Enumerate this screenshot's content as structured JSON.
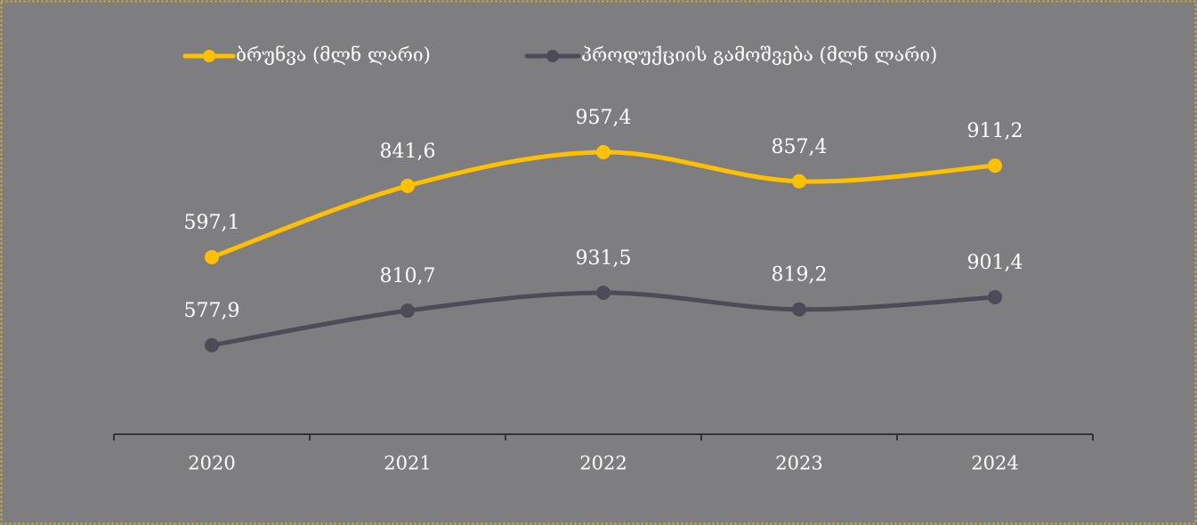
{
  "chart_data": {
    "type": "line",
    "categories": [
      "2020",
      "2021",
      "2022",
      "2023",
      "2024"
    ],
    "series": [
      {
        "name": "ბრუნვა (მლნ ლარი)",
        "color": "#ffc000",
        "values": [
          597.1,
          841.6,
          957.4,
          857.4,
          911.2
        ],
        "value_labels": [
          "597,1",
          "841,6",
          "957,4",
          "857,4",
          "911,2"
        ]
      },
      {
        "name": "პროდუქციის გამოშვება (მლნ ლარი)",
        "color": "#4d4b57",
        "axis": "y2",
        "values": [
          577.9,
          810.7,
          931.5,
          819.2,
          901.4
        ],
        "value_labels": [
          "577,9",
          "810,7",
          "931,5",
          "819,2",
          "901,4"
        ]
      }
    ],
    "legend": "top"
  }
}
